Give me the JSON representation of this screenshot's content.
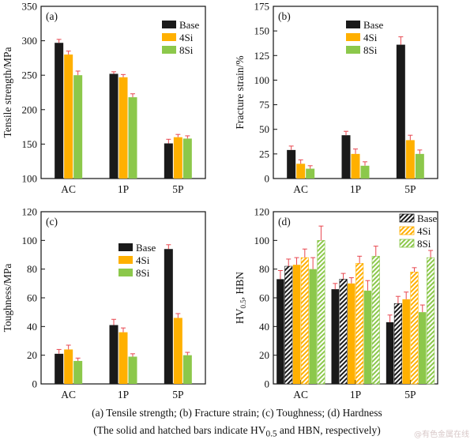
{
  "colors": {
    "base": "#1a1a1a",
    "si4": "#ffb000",
    "si8": "#8cc84b",
    "error": "#e8474f",
    "axis": "#111111"
  },
  "caption": {
    "line1": "(a)  Tensile  strength; (b) Fracture strain; (c) Toughness; (d) Hardness",
    "line2_pre": "(The solid and hatched bars indicate HV",
    "line2_sub": "0.5",
    "line2_post": " and HBN, respectively)"
  },
  "watermark": "@有色金属在线",
  "chart_data": [
    {
      "panel": "(a)",
      "type": "bar",
      "ylabel": "Tensile strength/MPa",
      "ylim": [
        100,
        350
      ],
      "yticks": [
        100,
        150,
        200,
        250,
        300,
        350
      ],
      "categories": [
        "AC",
        "1P",
        "5P"
      ],
      "legend_position": "top-right",
      "series": [
        {
          "name": "Base",
          "values": [
            297,
            252,
            151
          ],
          "errors": [
            5,
            3,
            6
          ]
        },
        {
          "name": "4Si",
          "values": [
            280,
            247,
            160
          ],
          "errors": [
            5,
            4,
            4
          ]
        },
        {
          "name": "8Si",
          "values": [
            250,
            218,
            158
          ],
          "errors": [
            6,
            5,
            4
          ]
        }
      ]
    },
    {
      "panel": "(b)",
      "type": "bar",
      "ylabel": "Fracture strain/%",
      "ylim": [
        0,
        175
      ],
      "yticks": [
        0,
        25,
        50,
        75,
        100,
        125,
        150,
        175
      ],
      "categories": [
        "AC",
        "1P",
        "5P"
      ],
      "legend_position": "top-right",
      "series": [
        {
          "name": "Base",
          "values": [
            29,
            44,
            136
          ],
          "errors": [
            4,
            4,
            8
          ]
        },
        {
          "name": "4Si",
          "values": [
            15,
            25,
            39
          ],
          "errors": [
            4,
            5,
            5
          ]
        },
        {
          "name": "8Si",
          "values": [
            10,
            13,
            25
          ],
          "errors": [
            3,
            4,
            4
          ]
        }
      ]
    },
    {
      "panel": "(c)",
      "type": "bar",
      "ylabel": "Toughness/MPa",
      "ylim": [
        0,
        120
      ],
      "yticks": [
        0,
        20,
        40,
        60,
        80,
        100,
        120
      ],
      "categories": [
        "AC",
        "1P",
        "5P"
      ],
      "legend_position": "center-right",
      "series": [
        {
          "name": "Base",
          "values": [
            21,
            41,
            94
          ],
          "errors": [
            3,
            4,
            3
          ]
        },
        {
          "name": "4Si",
          "values": [
            24,
            36,
            46
          ],
          "errors": [
            3,
            3,
            3
          ]
        },
        {
          "name": "8Si",
          "values": [
            16,
            19,
            20
          ],
          "errors": [
            2,
            2,
            2
          ]
        }
      ]
    },
    {
      "panel": "(d)",
      "type": "bar",
      "ylabel_main": "HV",
      "ylabel_sub": "0.5",
      "ylabel_post": ", HBN",
      "ylim": [
        0,
        120
      ],
      "yticks": [
        0,
        20,
        40,
        60,
        80,
        100,
        120
      ],
      "categories": [
        "AC",
        "1P",
        "5P"
      ],
      "legend_position": "top-right",
      "hatched_legend": true,
      "series": [
        {
          "name": "Base",
          "hv": [
            73,
            66,
            43
          ],
          "hbn": [
            82,
            73,
            56
          ],
          "hv_err": [
            6,
            4,
            5
          ],
          "hbn_err": [
            5,
            4,
            5
          ]
        },
        {
          "name": "4Si",
          "hv": [
            83,
            70,
            59
          ],
          "hbn": [
            88,
            84,
            78
          ],
          "hv_err": [
            5,
            4,
            5
          ],
          "hbn_err": [
            6,
            5,
            3
          ]
        },
        {
          "name": "8Si",
          "hv": [
            80,
            65,
            50
          ],
          "hbn": [
            100,
            89,
            88
          ],
          "hv_err": [
            8,
            7,
            5
          ],
          "hbn_err": [
            10,
            7,
            5
          ]
        }
      ]
    }
  ]
}
